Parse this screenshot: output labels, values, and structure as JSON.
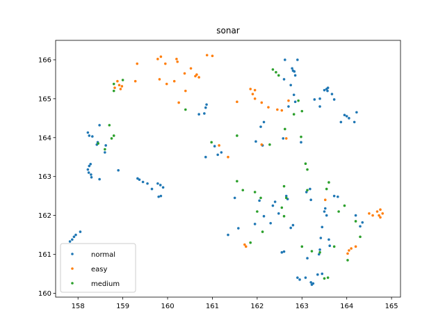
{
  "chart_data": {
    "type": "scatter",
    "title": "sonar",
    "xlabel": "",
    "ylabel": "",
    "xlim": [
      157.5,
      165.2
    ],
    "ylim": [
      159.9,
      166.5
    ],
    "xticks": [
      158,
      159,
      160,
      161,
      162,
      163,
      164,
      165
    ],
    "yticks": [
      160,
      161,
      162,
      163,
      164,
      165,
      166
    ],
    "grid": false,
    "legend_position": "lower-left",
    "series": [
      {
        "name": "normal",
        "color": "#1f77b4",
        "points": [
          [
            157.82,
            161.33
          ],
          [
            157.87,
            161.38
          ],
          [
            157.91,
            161.45
          ],
          [
            157.95,
            161.5
          ],
          [
            158.05,
            161.58
          ],
          [
            158.22,
            163.18
          ],
          [
            158.25,
            163.27
          ],
          [
            158.28,
            163.32
          ],
          [
            158.24,
            163.1
          ],
          [
            158.29,
            163.05
          ],
          [
            158.3,
            162.98
          ],
          [
            158.48,
            162.93
          ],
          [
            158.9,
            163.16
          ],
          [
            158.22,
            164.13
          ],
          [
            158.25,
            164.05
          ],
          [
            158.32,
            164.03
          ],
          [
            158.42,
            163.82
          ],
          [
            158.44,
            163.88
          ],
          [
            158.48,
            164.32
          ],
          [
            158.6,
            163.62
          ],
          [
            158.62,
            163.8
          ],
          [
            159.33,
            162.95
          ],
          [
            159.37,
            162.92
          ],
          [
            159.45,
            162.86
          ],
          [
            159.55,
            162.82
          ],
          [
            159.65,
            162.68
          ],
          [
            159.78,
            162.82
          ],
          [
            159.84,
            162.78
          ],
          [
            159.9,
            162.72
          ],
          [
            159.8,
            162.48
          ],
          [
            159.85,
            162.5
          ],
          [
            160.7,
            164.6
          ],
          [
            160.82,
            164.62
          ],
          [
            160.85,
            164.77
          ],
          [
            160.87,
            164.85
          ],
          [
            160.85,
            163.5
          ],
          [
            161.05,
            163.78
          ],
          [
            161.12,
            163.56
          ],
          [
            161.2,
            163.62
          ],
          [
            162.62,
            166.0
          ],
          [
            162.9,
            166.0
          ],
          [
            162.78,
            165.78
          ],
          [
            162.83,
            165.7
          ],
          [
            162.8,
            165.72
          ],
          [
            162.85,
            165.6
          ],
          [
            162.6,
            165.5
          ],
          [
            162.75,
            165.35
          ],
          [
            162.82,
            165.1
          ],
          [
            162.85,
            164.92
          ],
          [
            162.7,
            164.8
          ],
          [
            162.08,
            164.28
          ],
          [
            162.15,
            164.4
          ],
          [
            161.97,
            163.9
          ],
          [
            162.12,
            163.8
          ],
          [
            162.58,
            163.98
          ],
          [
            162.98,
            163.88
          ],
          [
            163.4,
            164.8
          ],
          [
            163.4,
            165.0
          ],
          [
            163.5,
            165.22
          ],
          [
            163.55,
            165.25
          ],
          [
            163.58,
            165.28
          ],
          [
            163.57,
            165.2
          ],
          [
            163.67,
            165.12
          ],
          [
            163.72,
            164.98
          ],
          [
            163.28,
            164.98
          ],
          [
            163.87,
            164.4
          ],
          [
            163.95,
            164.58
          ],
          [
            164.0,
            164.55
          ],
          [
            164.05,
            164.5
          ],
          [
            164.17,
            164.4
          ],
          [
            164.22,
            164.65
          ],
          [
            161.35,
            161.5
          ],
          [
            161.5,
            162.45
          ],
          [
            161.58,
            161.67
          ],
          [
            161.95,
            161.78
          ],
          [
            162.05,
            162.38
          ],
          [
            162.15,
            161.98
          ],
          [
            162.3,
            161.8
          ],
          [
            162.35,
            162.25
          ],
          [
            162.4,
            162.35
          ],
          [
            162.48,
            162.05
          ],
          [
            162.55,
            161.05
          ],
          [
            162.6,
            161.07
          ],
          [
            162.65,
            162.5
          ],
          [
            162.68,
            162.42
          ],
          [
            162.75,
            161.68
          ],
          [
            162.8,
            161.75
          ],
          [
            162.9,
            160.4
          ],
          [
            162.95,
            160.35
          ],
          [
            163.08,
            160.4
          ],
          [
            163.12,
            160.9
          ],
          [
            163.2,
            160.28
          ],
          [
            163.22,
            160.22
          ],
          [
            163.25,
            160.25
          ],
          [
            163.1,
            162.6
          ],
          [
            163.18,
            162.68
          ],
          [
            163.2,
            162.4
          ],
          [
            163.38,
            161.0
          ],
          [
            163.4,
            161.12
          ],
          [
            163.35,
            160.48
          ],
          [
            163.45,
            160.5
          ],
          [
            163.42,
            161.42
          ],
          [
            163.45,
            161.7
          ],
          [
            163.5,
            162.1
          ],
          [
            163.52,
            162.18
          ],
          [
            163.55,
            162.0
          ],
          [
            163.6,
            161.38
          ],
          [
            163.62,
            161.22
          ],
          [
            163.72,
            162.5
          ],
          [
            163.8,
            162.48
          ],
          [
            164.2,
            162.0
          ],
          [
            164.3,
            161.72
          ],
          [
            164.35,
            161.82
          ]
        ]
      },
      {
        "name": "easy",
        "color": "#ff7f0e",
        "points": [
          [
            158.82,
            165.28
          ],
          [
            158.88,
            165.45
          ],
          [
            158.92,
            165.35
          ],
          [
            158.95,
            165.25
          ],
          [
            158.98,
            165.32
          ],
          [
            159.32,
            165.9
          ],
          [
            159.28,
            165.45
          ],
          [
            159.78,
            166.02
          ],
          [
            159.85,
            166.08
          ],
          [
            159.82,
            165.5
          ],
          [
            159.95,
            165.9
          ],
          [
            159.98,
            165.38
          ],
          [
            160.2,
            166.02
          ],
          [
            160.22,
            165.95
          ],
          [
            160.15,
            165.45
          ],
          [
            160.25,
            164.9
          ],
          [
            160.38,
            165.65
          ],
          [
            160.4,
            165.2
          ],
          [
            160.52,
            165.78
          ],
          [
            160.62,
            165.58
          ],
          [
            160.65,
            165.62
          ],
          [
            160.7,
            165.55
          ],
          [
            160.88,
            166.12
          ],
          [
            161.0,
            166.1
          ],
          [
            161.15,
            163.8
          ],
          [
            161.35,
            163.5
          ],
          [
            161.55,
            164.92
          ],
          [
            161.85,
            165.25
          ],
          [
            161.9,
            165.12
          ],
          [
            161.95,
            165.22
          ],
          [
            161.95,
            165.0
          ],
          [
            162.1,
            164.9
          ],
          [
            162.25,
            164.78
          ],
          [
            162.45,
            164.72
          ],
          [
            162.55,
            164.7
          ],
          [
            162.7,
            164.95
          ],
          [
            162.1,
            163.82
          ],
          [
            162.65,
            163.98
          ],
          [
            161.72,
            161.25
          ],
          [
            161.75,
            161.2
          ],
          [
            163.52,
            162.4
          ],
          [
            164.02,
            161.02
          ],
          [
            164.05,
            161.1
          ],
          [
            164.1,
            161.15
          ],
          [
            164.2,
            161.2
          ],
          [
            164.5,
            162.05
          ],
          [
            164.58,
            162.0
          ],
          [
            164.68,
            162.1
          ],
          [
            164.72,
            162.0
          ],
          [
            164.75,
            162.15
          ],
          [
            164.8,
            162.05
          ],
          [
            164.75,
            161.95
          ]
        ]
      },
      {
        "name": "medium",
        "color": "#2ca02c",
        "points": [
          [
            158.8,
            165.38
          ],
          [
            158.8,
            165.2
          ],
          [
            159.0,
            165.48
          ],
          [
            158.7,
            164.32
          ],
          [
            158.75,
            163.98
          ],
          [
            158.8,
            164.05
          ],
          [
            158.45,
            163.85
          ],
          [
            158.6,
            163.7
          ],
          [
            160.4,
            164.72
          ],
          [
            160.98,
            163.88
          ],
          [
            161.55,
            164.05
          ],
          [
            162.35,
            165.75
          ],
          [
            162.42,
            165.68
          ],
          [
            162.48,
            165.6
          ],
          [
            162.82,
            164.6
          ],
          [
            162.92,
            164.95
          ],
          [
            163.0,
            164.68
          ],
          [
            162.62,
            164.22
          ],
          [
            162.28,
            163.82
          ],
          [
            162.98,
            164.02
          ],
          [
            163.08,
            163.33
          ],
          [
            163.12,
            163.18
          ],
          [
            161.55,
            162.88
          ],
          [
            161.68,
            162.65
          ],
          [
            161.95,
            162.6
          ],
          [
            162.08,
            162.45
          ],
          [
            162.0,
            162.1
          ],
          [
            162.12,
            161.58
          ],
          [
            162.6,
            162.75
          ],
          [
            162.65,
            162.45
          ],
          [
            162.55,
            162.2
          ],
          [
            162.6,
            161.98
          ],
          [
            163.0,
            161.2
          ],
          [
            163.12,
            162.65
          ],
          [
            163.55,
            162.68
          ],
          [
            163.6,
            162.85
          ],
          [
            163.72,
            161.2
          ],
          [
            163.82,
            162.1
          ],
          [
            163.95,
            162.25
          ],
          [
            163.22,
            161.08
          ],
          [
            163.4,
            161.05
          ],
          [
            163.5,
            160.38
          ],
          [
            163.58,
            160.4
          ],
          [
            164.02,
            160.85
          ],
          [
            164.2,
            161.85
          ],
          [
            164.3,
            161.45
          ],
          [
            161.85,
            161.3
          ]
        ]
      }
    ]
  }
}
